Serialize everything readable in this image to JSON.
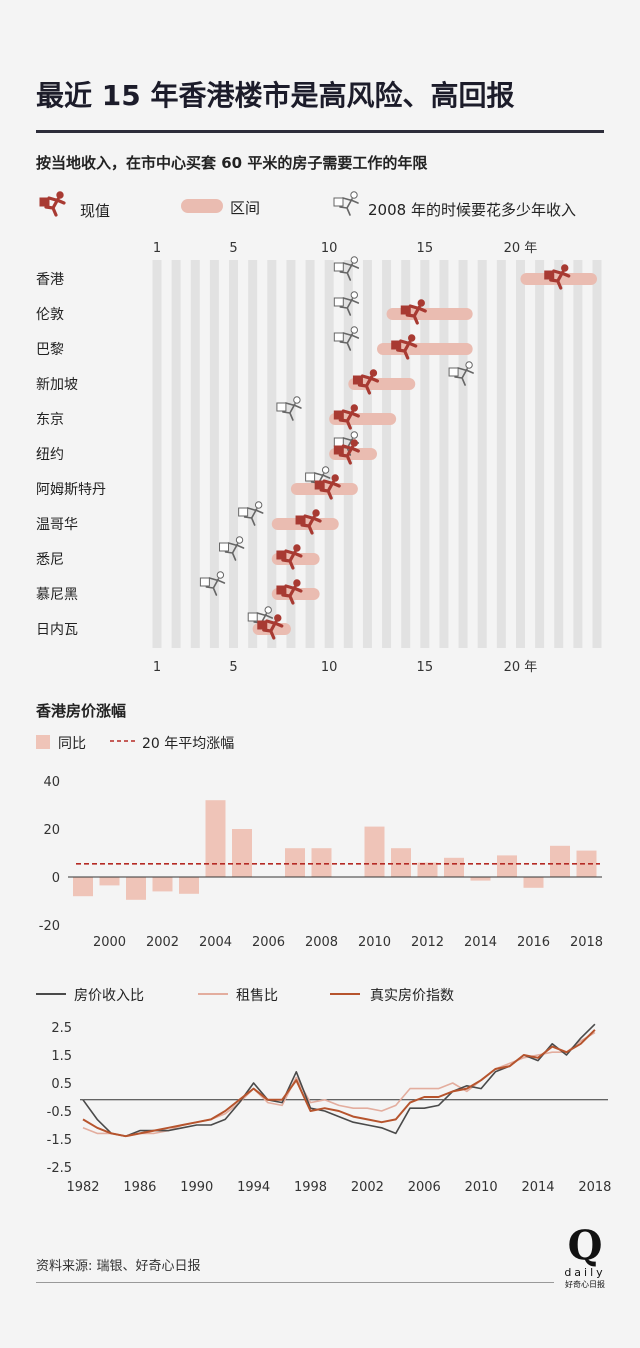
{
  "title": "最近 15 年香港楼市是高风险、高回报",
  "subtitle": "按当地收入，在市中心买套 60 平米的房子需要工作的年限",
  "legend": {
    "current": "现值",
    "range": "区间",
    "y2008": "2008 年的时候要花多少年收入"
  },
  "colors": {
    "accent": "#a83a32",
    "range": "#eabcb1",
    "column": "#e2e2e2",
    "bar": "#efc4b8",
    "avg": "#b52a24",
    "ratio": "#4a4a4a",
    "rent": "#e3ad9e",
    "real": "#b6542d"
  },
  "source": "资料来源: 瑞银、好奇心日报",
  "logo": {
    "q": "Q",
    "daily": "daily",
    "sub": "好奇心日报"
  },
  "chart_data": [
    {
      "type": "range-dot",
      "unit": "年",
      "xaxis": {
        "min": 1,
        "max": 24,
        "ticks": [
          "1",
          "5",
          "10",
          "15",
          "20"
        ],
        "tick_values": [
          1,
          5,
          10,
          15,
          20
        ],
        "last_tick_suffix": "年"
      },
      "cities": [
        {
          "name": "香港",
          "current": 22,
          "range": [
            20,
            24
          ],
          "y2008": 11
        },
        {
          "name": "伦敦",
          "current": 14.5,
          "range": [
            13,
            17.5
          ],
          "y2008": 11
        },
        {
          "name": "巴黎",
          "current": 14,
          "range": [
            12.5,
            17.5
          ],
          "y2008": 11
        },
        {
          "name": "新加坡",
          "current": 12,
          "range": [
            11,
            14.5
          ],
          "y2008": 17
        },
        {
          "name": "东京",
          "current": 11,
          "range": [
            10,
            13.5
          ],
          "y2008": 8
        },
        {
          "name": "纽约",
          "current": 11,
          "range": [
            10,
            12.5
          ],
          "y2008": 11
        },
        {
          "name": "阿姆斯特丹",
          "current": 10,
          "range": [
            8,
            11.5
          ],
          "y2008": 9.5
        },
        {
          "name": "温哥华",
          "current": 9,
          "range": [
            7,
            10.5
          ],
          "y2008": 6
        },
        {
          "name": "悉尼",
          "current": 8,
          "range": [
            7,
            9.5
          ],
          "y2008": 5
        },
        {
          "name": "慕尼黑",
          "current": 8,
          "range": [
            7,
            9.5
          ],
          "y2008": 4
        },
        {
          "name": "日内瓦",
          "current": 7,
          "range": [
            6,
            8
          ],
          "y2008": 6.5
        }
      ]
    },
    {
      "type": "bar",
      "title": "香港房价涨幅",
      "series": [
        {
          "name": "同比",
          "x": [
            1999,
            2000,
            2001,
            2002,
            2003,
            2004,
            2005,
            2006,
            2007,
            2008,
            2009,
            2010,
            2011,
            2012,
            2013,
            2014,
            2015,
            2016,
            2017,
            2018
          ],
          "values": [
            -8,
            -3.5,
            -9.5,
            -6,
            -7,
            32,
            20,
            0,
            12,
            12,
            0,
            21,
            12,
            6,
            8,
            -1.5,
            9,
            -4.5,
            13,
            11
          ]
        }
      ],
      "average": {
        "name": "20 年平均涨幅",
        "value": 5.5
      },
      "ylim": [
        -20,
        40
      ],
      "yticks": [
        "40",
        "20",
        "0",
        "-20"
      ],
      "ytick_values": [
        40,
        20,
        0,
        -20
      ],
      "xticks": [
        "2000",
        "2002",
        "2004",
        "2006",
        "2008",
        "2010",
        "2012",
        "2014",
        "2016",
        "2018"
      ],
      "xtick_values": [
        2000,
        2002,
        2004,
        2006,
        2008,
        2010,
        2012,
        2014,
        2016,
        2018
      ]
    },
    {
      "type": "line",
      "series": [
        {
          "name": "房价收入比",
          "x": [
            1982,
            1983,
            1984,
            1985,
            1986,
            1987,
            1988,
            1989,
            1990,
            1991,
            1992,
            1993,
            1994,
            1995,
            1996,
            1997,
            1998,
            1999,
            2000,
            2001,
            2002,
            2003,
            2004,
            2005,
            2006,
            2007,
            2008,
            2009,
            2010,
            2011,
            2012,
            2013,
            2014,
            2015,
            2016,
            2017,
            2018
          ],
          "values": [
            -0.1,
            -0.8,
            -1.3,
            -1.4,
            -1.2,
            -1.2,
            -1.2,
            -1.1,
            -1.0,
            -1.0,
            -0.8,
            -0.2,
            0.5,
            -0.1,
            -0.2,
            0.9,
            -0.4,
            -0.5,
            -0.7,
            -0.9,
            -1.0,
            -1.1,
            -1.3,
            -0.4,
            -0.4,
            -0.3,
            0.2,
            0.4,
            0.3,
            0.9,
            1.1,
            1.5,
            1.3,
            1.9,
            1.5,
            2.1,
            2.6
          ]
        },
        {
          "name": "租售比",
          "x": [
            1982,
            1983,
            1984,
            1985,
            1986,
            1987,
            1988,
            1989,
            1990,
            1991,
            1992,
            1993,
            1994,
            1995,
            1996,
            1997,
            1998,
            1999,
            2000,
            2001,
            2002,
            2003,
            2004,
            2005,
            2006,
            2007,
            2008,
            2009,
            2010,
            2011,
            2012,
            2013,
            2014,
            2015,
            2016,
            2017,
            2018
          ],
          "values": [
            -1.1,
            -1.3,
            -1.3,
            -1.4,
            -1.3,
            -1.3,
            -1.2,
            -1.0,
            -0.9,
            -0.8,
            -0.6,
            -0.2,
            0.3,
            -0.2,
            -0.3,
            0.7,
            -0.2,
            -0.1,
            -0.3,
            -0.4,
            -0.4,
            -0.5,
            -0.3,
            0.3,
            0.3,
            0.3,
            0.5,
            0.2,
            0.6,
            1.0,
            1.2,
            1.4,
            1.5,
            1.6,
            1.6,
            2.0,
            2.3
          ]
        },
        {
          "name": "真实房价指数",
          "x": [
            1982,
            1983,
            1984,
            1985,
            1986,
            1987,
            1988,
            1989,
            1990,
            1991,
            1992,
            1993,
            1994,
            1995,
            1996,
            1997,
            1998,
            1999,
            2000,
            2001,
            2002,
            2003,
            2004,
            2005,
            2006,
            2007,
            2008,
            2009,
            2010,
            2011,
            2012,
            2013,
            2014,
            2015,
            2016,
            2017,
            2018
          ],
          "values": [
            -0.8,
            -1.1,
            -1.3,
            -1.4,
            -1.3,
            -1.2,
            -1.1,
            -1.0,
            -0.9,
            -0.8,
            -0.5,
            -0.1,
            0.3,
            -0.1,
            -0.1,
            0.6,
            -0.5,
            -0.4,
            -0.5,
            -0.7,
            -0.8,
            -0.9,
            -0.8,
            -0.2,
            0.0,
            0.0,
            0.2,
            0.3,
            0.6,
            1.0,
            1.1,
            1.5,
            1.4,
            1.8,
            1.6,
            1.9,
            2.4
          ]
        }
      ],
      "ylim": [
        -2.5,
        2.5
      ],
      "yticks": [
        "2.5",
        "1.5",
        "0.5",
        "-0.5",
        "-1.5",
        "-2.5"
      ],
      "ytick_values": [
        2.5,
        1.5,
        0.5,
        -0.5,
        -1.5,
        -2.5
      ],
      "xticks": [
        "1982",
        "1986",
        "1990",
        "1994",
        "1998",
        "2002",
        "2006",
        "2010",
        "2014",
        "2018"
      ],
      "xtick_values": [
        1982,
        1986,
        1990,
        1994,
        1998,
        2002,
        2006,
        2010,
        2014,
        2018
      ]
    }
  ]
}
